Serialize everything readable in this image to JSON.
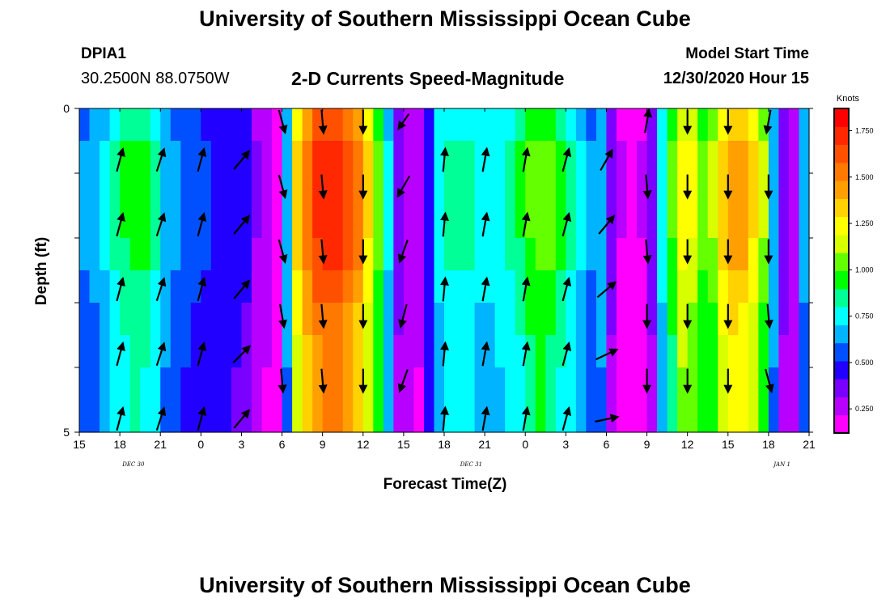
{
  "header": {
    "title_top": "University of Southern Mississippi Ocean Cube",
    "title_bottom": "University of Southern Mississippi Ocean Cube",
    "station": "DPIA1",
    "latlon": "30.2500N 88.0750W",
    "subtitle": "2-D Currents Speed-Magnitude",
    "model_label": "Model Start Time",
    "model_time": "12/30/2020 Hour 15"
  },
  "chart_data": {
    "type": "heatmap",
    "title": "2-D Currents Speed-Magnitude",
    "xlabel": "Forecast Time(Z)",
    "ylabel": "Depth (ft)",
    "x_tick_labels": [
      "15",
      "18",
      "21",
      "0",
      "3",
      "6",
      "9",
      "12",
      "15",
      "18",
      "21",
      "0",
      "3",
      "6",
      "9",
      "12",
      "15",
      "18",
      "21"
    ],
    "x_start_hour": 15,
    "x_end_hour": 69,
    "date_labels": [
      {
        "text": "DEC  30",
        "hour": 19
      },
      {
        "text": "DEC  31",
        "hour": 44
      },
      {
        "text": "JAN  1",
        "hour": 67
      }
    ],
    "y_tick_labels": [
      "0",
      "5"
    ],
    "ylim": [
      0,
      5
    ],
    "colorbar": {
      "title": "Knots",
      "ticks": [
        0.25,
        0.5,
        0.75,
        1.0,
        1.25,
        1.5,
        1.75
      ],
      "tick_labels": [
        "0.250",
        "0.500",
        "0.750",
        "1.000",
        "1.250",
        "1.500",
        "1.750"
      ],
      "range": [
        0.12,
        1.87
      ],
      "colors": [
        "#ff00ff",
        "#b700ff",
        "#7a00ff",
        "#2200ff",
        "#0050ff",
        "#00b4ff",
        "#00ffff",
        "#00ff96",
        "#00ff00",
        "#64ff00",
        "#d8ff00",
        "#ffff00",
        "#ffd200",
        "#ffa000",
        "#ff7800",
        "#ff5000",
        "#ff2800",
        "#ff0000"
      ]
    },
    "speed_by_hour": [
      0.62,
      0.66,
      0.72,
      0.82,
      0.9,
      0.95,
      0.92,
      0.82,
      0.7,
      0.62,
      0.58,
      0.55,
      0.52,
      0.5,
      0.48,
      0.47,
      0.45,
      0.32,
      0.25,
      0.2,
      0.7,
      1.35,
      1.55,
      1.68,
      1.75,
      1.74,
      1.64,
      1.52,
      1.3,
      1.05,
      0.72,
      0.35,
      0.28,
      0.25,
      0.5,
      0.78,
      0.82,
      0.85,
      0.82,
      0.78,
      0.75,
      0.8,
      0.85,
      0.9,
      1.0,
      1.05,
      1.02,
      0.92,
      0.82,
      0.72,
      0.62,
      0.7,
      0.35,
      0.22,
      0.2,
      0.22,
      0.35,
      0.75,
      1.0,
      1.25,
      1.2,
      1.05,
      1.1,
      1.35,
      1.45,
      1.42,
      1.3,
      1.1,
      0.7,
      0.35,
      0.3,
      0.65
    ],
    "depth_row_factor": [
      0.94,
      1.0,
      1.0,
      1.0,
      0.98,
      0.94,
      0.9,
      0.88,
      0.86,
      0.86
    ],
    "arrows": [
      {
        "time": 18,
        "depth": 0.8,
        "dir": 15,
        "len": 0.9
      },
      {
        "time": 21,
        "depth": 0.8,
        "dir": 18,
        "len": 0.9
      },
      {
        "time": 24,
        "depth": 0.8,
        "dir": 15,
        "len": 0.9
      },
      {
        "time": 27,
        "depth": 0.8,
        "dir": 40,
        "len": 0.9
      },
      {
        "time": 18,
        "depth": 1.8,
        "dir": 15,
        "len": 0.9
      },
      {
        "time": 21,
        "depth": 1.8,
        "dir": 18,
        "len": 0.9
      },
      {
        "time": 24,
        "depth": 1.8,
        "dir": 15,
        "len": 0.9
      },
      {
        "time": 27,
        "depth": 1.8,
        "dir": 40,
        "len": 0.9
      },
      {
        "time": 18,
        "depth": 2.8,
        "dir": 15,
        "len": 0.9
      },
      {
        "time": 21,
        "depth": 2.8,
        "dir": 18,
        "len": 0.9
      },
      {
        "time": 24,
        "depth": 2.8,
        "dir": 15,
        "len": 0.9
      },
      {
        "time": 27,
        "depth": 2.8,
        "dir": 40,
        "len": 0.9
      },
      {
        "time": 18,
        "depth": 3.8,
        "dir": 15,
        "len": 0.9
      },
      {
        "time": 21,
        "depth": 3.8,
        "dir": 18,
        "len": 0.9
      },
      {
        "time": 24,
        "depth": 3.8,
        "dir": 15,
        "len": 0.9
      },
      {
        "time": 27,
        "depth": 3.8,
        "dir": 45,
        "len": 0.9
      },
      {
        "time": 18,
        "depth": 4.8,
        "dir": 15,
        "len": 0.9
      },
      {
        "time": 21,
        "depth": 4.8,
        "dir": 18,
        "len": 0.9
      },
      {
        "time": 24,
        "depth": 4.8,
        "dir": 15,
        "len": 0.9
      },
      {
        "time": 27,
        "depth": 4.8,
        "dir": 40,
        "len": 0.9
      },
      {
        "time": 30,
        "depth": 0.2,
        "dir": 165,
        "len": 0.9
      },
      {
        "time": 33,
        "depth": 0.2,
        "dir": 175,
        "len": 0.9
      },
      {
        "time": 36,
        "depth": 0.2,
        "dir": 180,
        "len": 0.9
      },
      {
        "time": 39,
        "depth": 0.2,
        "dir": 215,
        "len": 0.7
      },
      {
        "time": 30,
        "depth": 1.2,
        "dir": 165,
        "len": 0.9
      },
      {
        "time": 33,
        "depth": 1.2,
        "dir": 175,
        "len": 0.9
      },
      {
        "time": 36,
        "depth": 1.2,
        "dir": 180,
        "len": 0.9
      },
      {
        "time": 39,
        "depth": 1.2,
        "dir": 210,
        "len": 0.9
      },
      {
        "time": 30,
        "depth": 2.2,
        "dir": 165,
        "len": 0.9
      },
      {
        "time": 33,
        "depth": 2.2,
        "dir": 175,
        "len": 0.9
      },
      {
        "time": 36,
        "depth": 2.2,
        "dir": 180,
        "len": 0.9
      },
      {
        "time": 39,
        "depth": 2.2,
        "dir": 200,
        "len": 0.9
      },
      {
        "time": 30,
        "depth": 3.2,
        "dir": 170,
        "len": 0.9
      },
      {
        "time": 33,
        "depth": 3.2,
        "dir": 175,
        "len": 0.9
      },
      {
        "time": 36,
        "depth": 3.2,
        "dir": 180,
        "len": 0.9
      },
      {
        "time": 39,
        "depth": 3.2,
        "dir": 195,
        "len": 0.9
      },
      {
        "time": 30,
        "depth": 4.2,
        "dir": 175,
        "len": 0.9
      },
      {
        "time": 33,
        "depth": 4.2,
        "dir": 175,
        "len": 0.9
      },
      {
        "time": 36,
        "depth": 4.2,
        "dir": 180,
        "len": 0.9
      },
      {
        "time": 39,
        "depth": 4.2,
        "dir": 200,
        "len": 0.9
      },
      {
        "time": 42,
        "depth": 0.8,
        "dir": 5,
        "len": 0.9
      },
      {
        "time": 45,
        "depth": 0.8,
        "dir": 10,
        "len": 0.9
      },
      {
        "time": 48,
        "depth": 0.8,
        "dir": 10,
        "len": 0.9
      },
      {
        "time": 51,
        "depth": 0.8,
        "dir": 15,
        "len": 0.9
      },
      {
        "time": 54,
        "depth": 0.8,
        "dir": 30,
        "len": 0.9
      },
      {
        "time": 42,
        "depth": 1.8,
        "dir": 5,
        "len": 0.9
      },
      {
        "time": 45,
        "depth": 1.8,
        "dir": 10,
        "len": 0.9
      },
      {
        "time": 48,
        "depth": 1.8,
        "dir": 10,
        "len": 0.9
      },
      {
        "time": 51,
        "depth": 1.8,
        "dir": 15,
        "len": 0.9
      },
      {
        "time": 54,
        "depth": 1.8,
        "dir": 40,
        "len": 0.9
      },
      {
        "time": 42,
        "depth": 2.8,
        "dir": 5,
        "len": 0.9
      },
      {
        "time": 45,
        "depth": 2.8,
        "dir": 10,
        "len": 0.9
      },
      {
        "time": 48,
        "depth": 2.8,
        "dir": 10,
        "len": 0.9
      },
      {
        "time": 51,
        "depth": 2.8,
        "dir": 15,
        "len": 0.9
      },
      {
        "time": 54,
        "depth": 2.8,
        "dir": 50,
        "len": 0.9
      },
      {
        "time": 42,
        "depth": 3.8,
        "dir": 5,
        "len": 0.9
      },
      {
        "time": 45,
        "depth": 3.8,
        "dir": 10,
        "len": 0.9
      },
      {
        "time": 48,
        "depth": 3.8,
        "dir": 10,
        "len": 0.9
      },
      {
        "time": 51,
        "depth": 3.8,
        "dir": 15,
        "len": 0.9
      },
      {
        "time": 54,
        "depth": 3.8,
        "dir": 65,
        "len": 0.9
      },
      {
        "time": 42,
        "depth": 4.8,
        "dir": 5,
        "len": 0.9
      },
      {
        "time": 45,
        "depth": 4.8,
        "dir": 10,
        "len": 0.9
      },
      {
        "time": 48,
        "depth": 4.8,
        "dir": 10,
        "len": 0.9
      },
      {
        "time": 51,
        "depth": 4.8,
        "dir": 15,
        "len": 0.9
      },
      {
        "time": 54,
        "depth": 4.8,
        "dir": 78,
        "len": 0.9
      },
      {
        "time": 57,
        "depth": 0.2,
        "dir": 10,
        "len": 0.9
      },
      {
        "time": 60,
        "depth": 0.2,
        "dir": 180,
        "len": 0.9
      },
      {
        "time": 63,
        "depth": 0.2,
        "dir": 180,
        "len": 0.9
      },
      {
        "time": 66,
        "depth": 0.2,
        "dir": 190,
        "len": 0.9
      },
      {
        "time": 57,
        "depth": 1.2,
        "dir": 175,
        "len": 0.9
      },
      {
        "time": 60,
        "depth": 1.2,
        "dir": 180,
        "len": 0.9
      },
      {
        "time": 63,
        "depth": 1.2,
        "dir": 180,
        "len": 0.9
      },
      {
        "time": 66,
        "depth": 1.2,
        "dir": 180,
        "len": 0.9
      },
      {
        "time": 57,
        "depth": 2.2,
        "dir": 175,
        "len": 0.9
      },
      {
        "time": 60,
        "depth": 2.2,
        "dir": 180,
        "len": 0.9
      },
      {
        "time": 63,
        "depth": 2.2,
        "dir": 180,
        "len": 0.9
      },
      {
        "time": 66,
        "depth": 2.2,
        "dir": 180,
        "len": 0.9
      },
      {
        "time": 57,
        "depth": 3.2,
        "dir": 180,
        "len": 0.9
      },
      {
        "time": 60,
        "depth": 3.2,
        "dir": 180,
        "len": 0.9
      },
      {
        "time": 63,
        "depth": 3.2,
        "dir": 180,
        "len": 0.9
      },
      {
        "time": 66,
        "depth": 3.2,
        "dir": 175,
        "len": 0.9
      },
      {
        "time": 57,
        "depth": 4.2,
        "dir": 180,
        "len": 0.9
      },
      {
        "time": 60,
        "depth": 4.2,
        "dir": 180,
        "len": 0.9
      },
      {
        "time": 63,
        "depth": 4.2,
        "dir": 180,
        "len": 0.9
      },
      {
        "time": 66,
        "depth": 4.2,
        "dir": 165,
        "len": 0.9
      }
    ]
  }
}
